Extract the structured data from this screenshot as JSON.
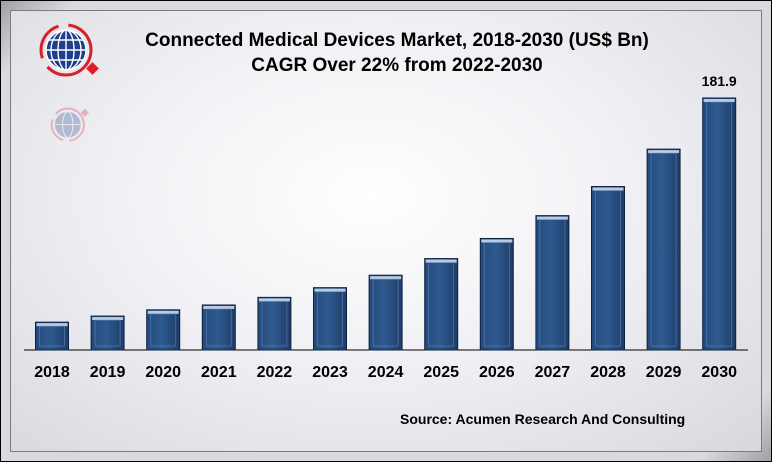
{
  "chart_data": {
    "type": "bar",
    "title": "Connected Medical Devices Market, 2018-2030 (US$ Bn)",
    "subtitle": "CAGR Over 22% from 2022-2030",
    "categories": [
      "2018",
      "2019",
      "2020",
      "2021",
      "2022",
      "2023",
      "2024",
      "2025",
      "2026",
      "2027",
      "2028",
      "2029",
      "2030"
    ],
    "values": [
      20.1,
      24.5,
      29.0,
      32.5,
      38.0,
      45.0,
      54.0,
      66.0,
      80.5,
      97.0,
      118.0,
      145.0,
      181.9
    ],
    "data_labels": {
      "2030": "181.9"
    },
    "ylim": [
      0,
      190
    ],
    "grid": false,
    "legend": "none",
    "bar_color": "#2f5a8f",
    "source": "Source: Acumen Research And Consulting"
  }
}
